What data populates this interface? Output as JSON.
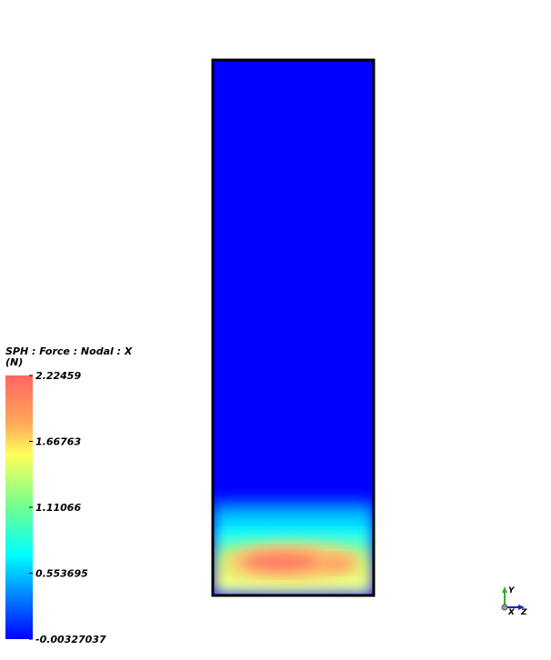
{
  "legend": {
    "title": "SPH : Force : Nodal : X",
    "unit": "(N)",
    "ticks": [
      2.22459,
      1.66763,
      1.11066,
      0.553695,
      -0.00327037
    ]
  },
  "triad": {
    "y": "Y",
    "x": "X",
    "z": "Z"
  }
}
